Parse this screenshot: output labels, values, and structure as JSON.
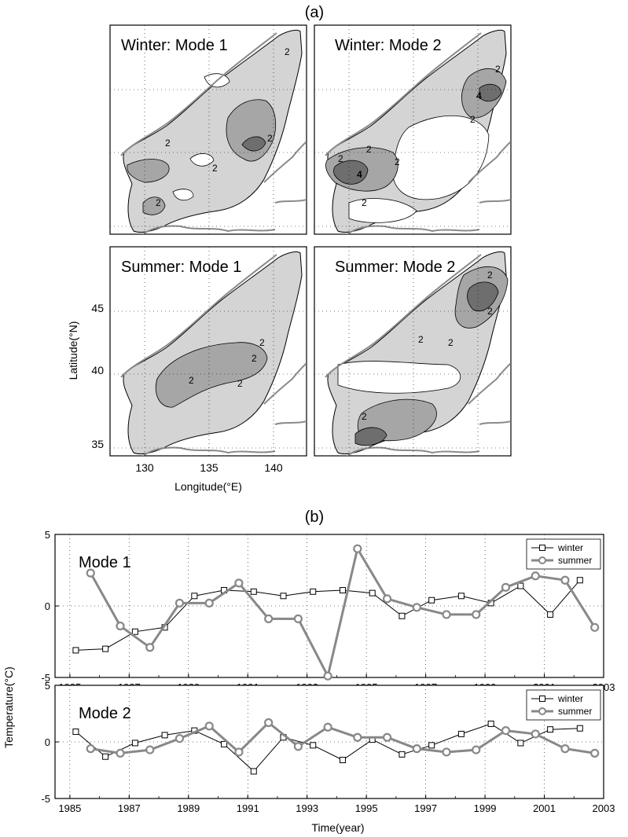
{
  "panel_labels": {
    "a": "(a)",
    "b": "(b)"
  },
  "maps": {
    "panels": [
      {
        "title": "Winter: Mode 1",
        "contour_labels": [
          "2",
          "2",
          "2",
          "2",
          "2"
        ]
      },
      {
        "title": "Winter: Mode 2",
        "contour_labels": [
          "2",
          "4",
          "2",
          "2",
          "2",
          "4",
          "2",
          "2"
        ]
      },
      {
        "title": "Summer: Mode 1",
        "contour_labels": [
          "2",
          "2",
          "2",
          "2"
        ]
      },
      {
        "title": "Summer: Mode 2",
        "contour_labels": [
          "2",
          "2",
          "2",
          "2",
          "2"
        ]
      }
    ],
    "xlabel": "Longitude(°E)",
    "ylabel": "Latitude(°N)",
    "xticks": [
      "130",
      "135",
      "140"
    ],
    "yticks": [
      "45",
      "40",
      "35"
    ],
    "xlim": [
      127,
      142
    ],
    "ylim": [
      34,
      48.5
    ],
    "colors": {
      "land": "#8a8a8a",
      "light": "#d4d4d4",
      "mid": "#a6a6a6",
      "dark": "#6e6e6e"
    }
  },
  "chart_data": {
    "type": "line",
    "xlabel": "Time(year)",
    "ylabel": "Temperature(°C)",
    "xlim": [
      1984.5,
      2003
    ],
    "ylim": [
      -5,
      5
    ],
    "xticks": [
      "1985",
      "1987",
      "1989",
      "1991",
      "1993",
      "1995",
      "1997",
      "1999",
      "2001",
      "2003"
    ],
    "yticks": [
      "5",
      "0",
      "-5"
    ],
    "grid": true,
    "legend_position": "top-right",
    "panels": [
      {
        "title": "Mode 1",
        "series": [
          {
            "name": "winter",
            "color": "#000000",
            "marker": "square",
            "x": [
              1985.2,
              1986.2,
              1987.2,
              1988.2,
              1989.2,
              1990.2,
              1991.2,
              1992.2,
              1993.2,
              1994.2,
              1995.2,
              1996.2,
              1997.2,
              1998.2,
              1999.2,
              2000.2,
              2001.2,
              2002.2
            ],
            "y": [
              -3.1,
              -3.0,
              -1.8,
              -1.5,
              0.7,
              1.1,
              1.0,
              0.7,
              1.0,
              1.1,
              0.9,
              -0.7,
              0.4,
              0.7,
              0.2,
              1.4,
              -0.6,
              1.8
            ]
          },
          {
            "name": "summer",
            "color": "#888888",
            "marker": "circle",
            "x": [
              1985.7,
              1986.7,
              1987.7,
              1988.7,
              1989.7,
              1990.7,
              1991.7,
              1992.7,
              1993.7,
              1994.7,
              1995.7,
              1996.7,
              1997.7,
              1998.7,
              1999.7,
              2000.7,
              2001.7,
              2002.7
            ],
            "y": [
              2.3,
              -1.4,
              -2.9,
              0.2,
              0.2,
              1.6,
              -0.9,
              -0.9,
              -4.9,
              4.0,
              0.5,
              -0.1,
              -0.6,
              -0.6,
              1.3,
              2.1,
              1.8,
              -1.5
            ]
          }
        ]
      },
      {
        "title": "Mode 2",
        "series": [
          {
            "name": "winter",
            "color": "#000000",
            "marker": "square",
            "x": [
              1985.2,
              1986.2,
              1987.2,
              1988.2,
              1989.2,
              1990.2,
              1991.2,
              1992.2,
              1993.2,
              1994.2,
              1995.2,
              1996.2,
              1997.2,
              1998.2,
              1999.2,
              2000.2,
              2001.2,
              2002.2
            ],
            "y": [
              0.9,
              -1.3,
              -0.1,
              0.6,
              1.0,
              -0.2,
              -2.6,
              0.4,
              -0.3,
              -1.6,
              0.2,
              -1.1,
              -0.3,
              0.7,
              1.6,
              -0.1,
              1.1,
              1.2
            ]
          },
          {
            "name": "summer",
            "color": "#888888",
            "marker": "circle",
            "x": [
              1985.7,
              1986.7,
              1987.7,
              1988.7,
              1989.7,
              1990.7,
              1991.7,
              1992.7,
              1993.7,
              1994.7,
              1995.7,
              1996.7,
              1997.7,
              1998.7,
              1999.7,
              2000.7,
              2001.7,
              2002.7
            ],
            "y": [
              -0.6,
              -1.0,
              -0.7,
              0.3,
              1.4,
              -0.9,
              1.7,
              -0.4,
              1.3,
              0.4,
              0.4,
              -0.6,
              -0.9,
              -0.7,
              1.0,
              0.7,
              -0.6,
              -1.0
            ]
          }
        ]
      }
    ]
  }
}
